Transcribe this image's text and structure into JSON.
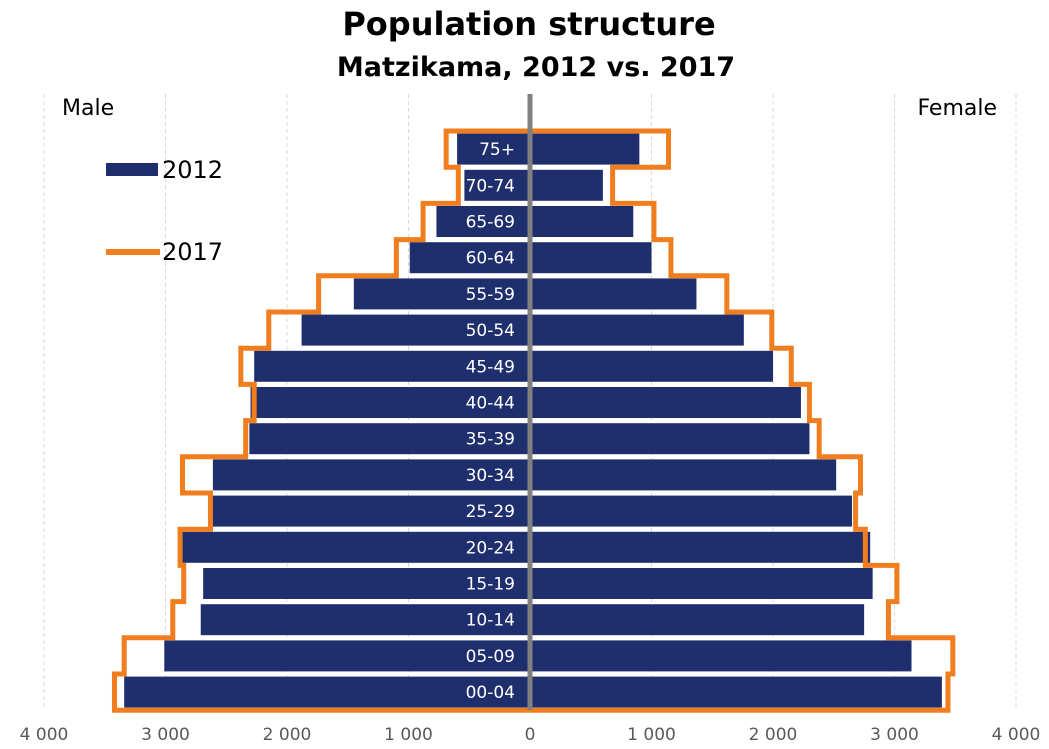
{
  "chart_data": {
    "type": "bar",
    "orientation": "horizontal",
    "title": "Population structure",
    "subtitle": "Matzikama, 2012 vs. 2017",
    "left_label": "Male",
    "right_label": "Female",
    "categories": [
      "75+",
      "70-74",
      "65-69",
      "60-64",
      "55-59",
      "50-54",
      "45-49",
      "40-44",
      "35-39",
      "30-34",
      "25-29",
      "20-24",
      "15-19",
      "10-14",
      "05-09",
      "00-04"
    ],
    "x_ticks": [
      {
        "value": -4000,
        "label": "4 000"
      },
      {
        "value": -3000,
        "label": "3 000"
      },
      {
        "value": -2000,
        "label": "2 000"
      },
      {
        "value": -1000,
        "label": "1 000"
      },
      {
        "value": 0,
        "label": "0"
      },
      {
        "value": 1000,
        "label": "1 000"
      },
      {
        "value": 2000,
        "label": "2 000"
      },
      {
        "value": 3000,
        "label": "3 000"
      },
      {
        "value": 4000,
        "label": "4 000"
      }
    ],
    "xlim": [
      -4000,
      4000
    ],
    "grid": true,
    "legend_position": "top-left",
    "series": [
      {
        "name": "2012",
        "style": "bar",
        "color": "#1f2f6e",
        "male": [
          600,
          540,
          770,
          990,
          1450,
          1880,
          2270,
          2300,
          2310,
          2610,
          2640,
          2860,
          2690,
          2710,
          3010,
          3340
        ],
        "female": [
          900,
          600,
          850,
          1000,
          1370,
          1760,
          2000,
          2230,
          2300,
          2520,
          2650,
          2800,
          2820,
          2750,
          3140,
          3390
        ]
      },
      {
        "name": "2017",
        "style": "outline",
        "color": "#f07d1e",
        "male": [
          690,
          590,
          880,
          1100,
          1740,
          2150,
          2380,
          2270,
          2340,
          2860,
          2630,
          2880,
          2850,
          2940,
          3340,
          3420
        ],
        "female": [
          1140,
          680,
          1020,
          1160,
          1620,
          1990,
          2150,
          2300,
          2380,
          2720,
          2680,
          2760,
          3020,
          2950,
          3480,
          3440
        ]
      }
    ]
  }
}
